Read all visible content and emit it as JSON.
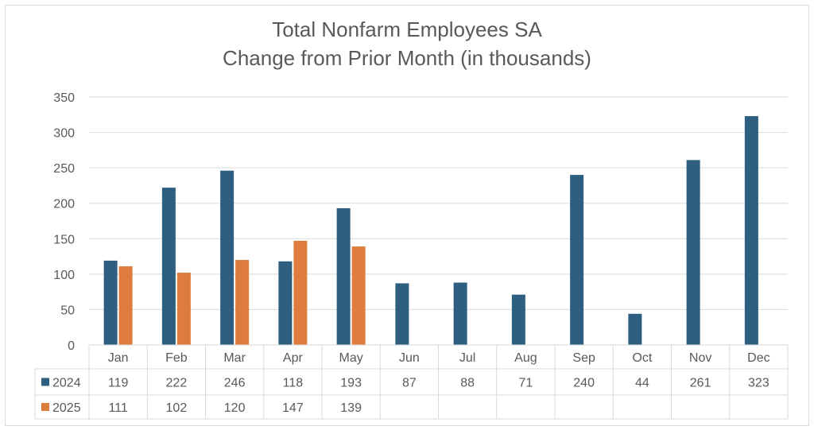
{
  "chart_data": {
    "type": "bar",
    "title_lines": [
      "Total Nonfarm Employees SA",
      "Change from Prior Month (in thousands)"
    ],
    "categories": [
      "Jan",
      "Feb",
      "Mar",
      "Apr",
      "May",
      "Jun",
      "Jul",
      "Aug",
      "Sep",
      "Oct",
      "Nov",
      "Dec"
    ],
    "series": [
      {
        "name": "2024",
        "color": "#2e5f80",
        "values": [
          119,
          222,
          246,
          118,
          193,
          87,
          88,
          71,
          240,
          44,
          261,
          323
        ]
      },
      {
        "name": "2025",
        "color": "#de7c3e",
        "values": [
          111,
          102,
          120,
          147,
          139,
          null,
          null,
          null,
          null,
          null,
          null,
          null
        ]
      }
    ],
    "yticks": [
      0,
      50,
      100,
      150,
      200,
      250,
      300,
      350
    ],
    "ylim": [
      0,
      350
    ],
    "grid": true,
    "legend": "data-table",
    "data_table": true
  }
}
